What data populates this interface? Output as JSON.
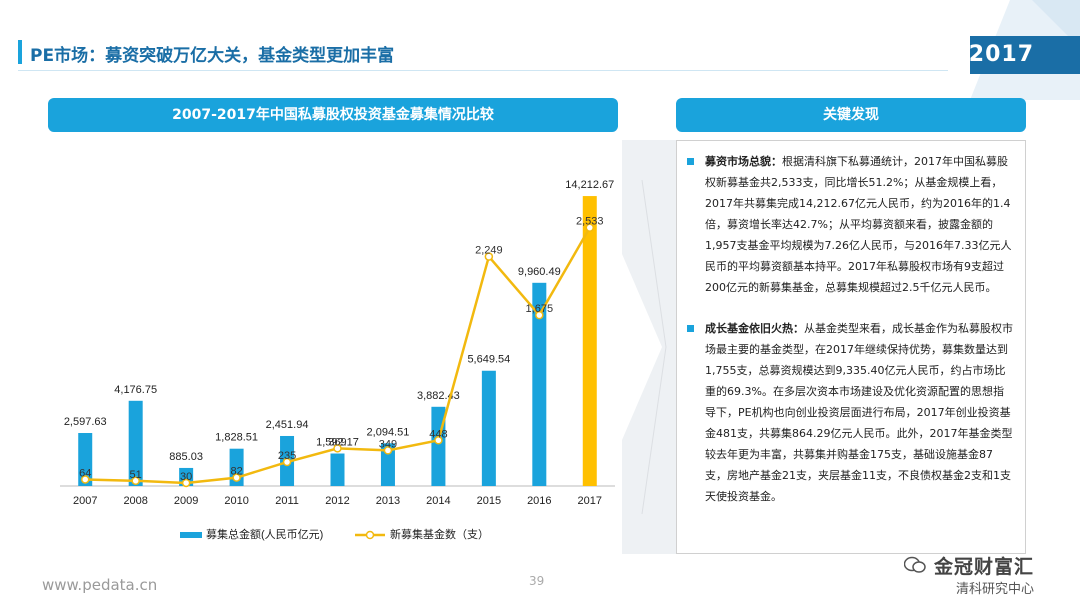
{
  "page": {
    "title": "PE市场：募资突破万亿大关，基金类型更加丰富",
    "year_badge": "2017",
    "footer_url": "www.pedata.cn",
    "page_number": "39",
    "watermark_main": "金冠财富汇",
    "watermark_sub": "清科研究中心",
    "colors": {
      "accent": "#1aa3dc",
      "bar": "#1aa3dc",
      "bar_highlight": "#ffc000",
      "line": "#f2b90f"
    }
  },
  "chart_header": "2007-2017年中国私募股权投资基金募集情况比较",
  "findings": {
    "header": "关键发现",
    "items": [
      {
        "head": "募资市场总貌：",
        "body": "根据清科旗下私募通统计，2017年中国私募股权新募基金共2,533支，同比增长51.2%；从基金规模上看，2017年共募集完成14,212.67亿元人民币，约为2016年的1.4倍，募资增长率达42.7%；从平均募资额来看，披露金额的1,957支基金平均规模为7.26亿人民币，与2016年7.33亿元人民币的平均募资额基本持平。2017年私募股权市场有9支超过200亿元的新募集基金，总募集规模超过2.5千亿元人民币。"
      },
      {
        "head": "成长基金依旧火热：",
        "body": "从基金类型来看，成长基金作为私募股权市场最主要的基金类型，在2017年继续保持优势，募集数量达到1,755支，总募资规模达到9,335.40亿元人民币，约占市场比重的69.3%。在多层次资本市场建设及优化资源配置的思想指导下，PE机构也向创业投资层面进行布局，2017年创业投资基金481支，共募集864.29亿元人民币。此外，2017年基金类型较去年更为丰富，共募集并购基金175支，基础设施基金87支，房地产基金21支，夹层基金11支，不良债权基金2支和1支天使投资基金。"
      }
    ]
  },
  "chart_data": {
    "type": "bar",
    "title": "2007-2017年中国私募股权投资基金募集情况比较",
    "categories": [
      "2007",
      "2008",
      "2009",
      "2010",
      "2011",
      "2012",
      "2013",
      "2014",
      "2015",
      "2016",
      "2017"
    ],
    "series": [
      {
        "name": "募集总金额(人民币亿元)",
        "type": "bar",
        "values": [
          2597.63,
          4176.75,
          885.03,
          1828.51,
          2451.94,
          1592.17,
          2094.51,
          3882.43,
          5649.54,
          9960.49,
          14212.67
        ],
        "labels": [
          "2,597.63",
          "4,176.75",
          "885.03",
          "1,828.51",
          "2,451.94",
          "1,592.17",
          "2,094.51",
          "3,882.43",
          "5,649.54",
          "9,960.49",
          "14,212.67"
        ]
      },
      {
        "name": "新募集基金数（支）",
        "type": "line",
        "values": [
          64,
          51,
          30,
          82,
          235,
          369,
          349,
          448,
          2249,
          1675,
          2533
        ],
        "labels": [
          "64",
          "51",
          "30",
          "82",
          "235",
          "369",
          "349",
          "448",
          "2,249",
          "1,675",
          "2,533"
        ]
      }
    ],
    "ylim_amount": [
      0,
      15000
    ],
    "ylim_count": [
      0,
      3000
    ],
    "grid": false,
    "legend_placement": "bottom"
  }
}
